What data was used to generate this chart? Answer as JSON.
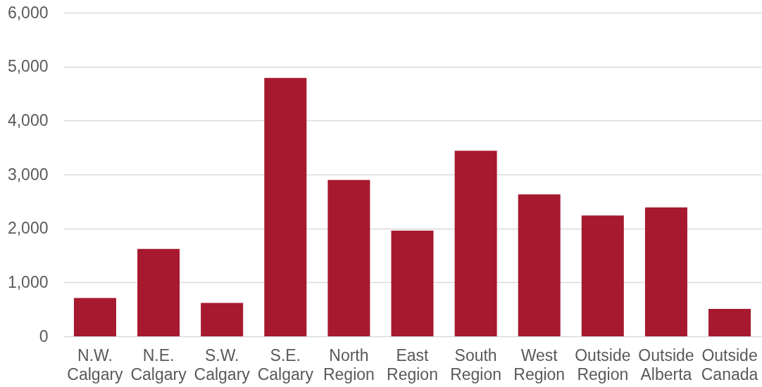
{
  "chart_data": {
    "type": "bar",
    "categories": [
      "N.W. Calgary",
      "N.E. Calgary",
      "S.W. Calgary",
      "S.E. Calgary",
      "North Region",
      "East Region",
      "South Region",
      "West Region",
      "Outside Region",
      "Outside Alberta",
      "Outside Canada"
    ],
    "values": [
      710,
      1620,
      620,
      4790,
      2900,
      1960,
      3440,
      2630,
      2240,
      2390,
      510
    ],
    "color": "#a6192e",
    "ylim": [
      0,
      6000
    ],
    "yticks": [
      0,
      {
        "value": 1000,
        "label": "1,000"
      },
      {
        "value": 2000,
        "label": "2,000"
      },
      {
        "value": 3000,
        "label": "3,000"
      },
      {
        "value": 4000,
        "label": "4,000"
      },
      {
        "value": 5000,
        "label": "5,000"
      },
      {
        "value": 6000,
        "label": "6,000"
      }
    ],
    "grid": "y"
  }
}
